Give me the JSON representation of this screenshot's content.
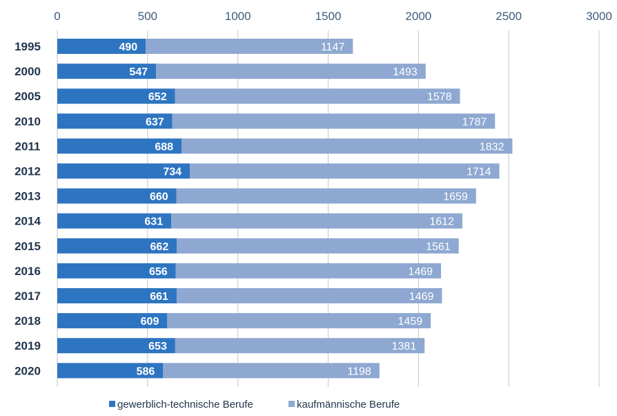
{
  "chart_data": {
    "type": "bar",
    "orientation": "horizontal",
    "stacked": true,
    "categories": [
      "1995",
      "2000",
      "2005",
      "2010",
      "2011",
      "2012",
      "2013",
      "2014",
      "2015",
      "2016",
      "2017",
      "2018",
      "2019",
      "2020"
    ],
    "series": [
      {
        "name": "gewerblich-technische Berufe",
        "color": "#2e75c1",
        "values": [
          490,
          547,
          652,
          637,
          688,
          734,
          660,
          631,
          662,
          656,
          661,
          609,
          653,
          586
        ]
      },
      {
        "name": "kaufmännische Berufe",
        "color": "#8ea8d1",
        "values": [
          1147,
          1493,
          1578,
          1787,
          1832,
          1714,
          1659,
          1612,
          1561,
          1469,
          1469,
          1459,
          1381,
          1198
        ]
      }
    ],
    "xlim": [
      0,
      3000
    ],
    "xticks": [
      "0",
      "500",
      "1000",
      "1500",
      "2000",
      "2500",
      "3000"
    ],
    "x_axis_position": "top",
    "grid": true,
    "legend_position": "bottom",
    "title": "",
    "xlabel": "",
    "ylabel": ""
  }
}
